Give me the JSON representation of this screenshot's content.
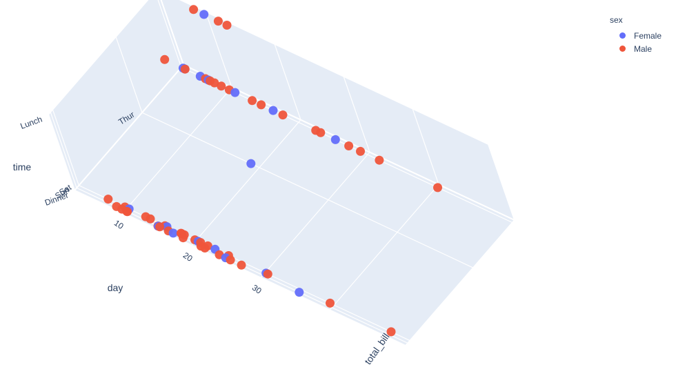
{
  "chart_data": {
    "type": "scatter3d",
    "axes": {
      "x": {
        "title": "total_bill",
        "tick_labels": [
          "10",
          "20",
          "30"
        ]
      },
      "y": {
        "title": "day",
        "tick_labels": [
          "Sun",
          "Sat",
          "Thur"
        ]
      },
      "z": {
        "title": "time",
        "tick_labels": [
          "Dinner",
          "Lunch"
        ]
      }
    },
    "legend": {
      "title": "sex",
      "placement": "top-right",
      "items": [
        {
          "name": "Female",
          "color": "#636efa"
        },
        {
          "name": "Male",
          "color": "#ef553b"
        }
      ]
    },
    "series": [
      {
        "name": "Female",
        "color": "#636efa",
        "points": [
          {
            "total_bill": 16.99,
            "day": "Sun",
            "time": "Dinner"
          },
          {
            "total_bill": 24.59,
            "day": "Sun",
            "time": "Dinner"
          },
          {
            "total_bill": 14.83,
            "day": "Sun",
            "time": "Dinner"
          },
          {
            "total_bill": 35.26,
            "day": "Sun",
            "time": "Dinner"
          },
          {
            "total_bill": 10.29,
            "day": "Sat",
            "time": "Dinner"
          },
          {
            "total_bill": 22.75,
            "day": "Sat",
            "time": "Dinner"
          },
          {
            "total_bill": 20.29,
            "day": "Sat",
            "time": "Dinner"
          },
          {
            "total_bill": 15.77,
            "day": "Sat",
            "time": "Dinner"
          },
          {
            "total_bill": 30.14,
            "day": "Sat",
            "time": "Dinner"
          },
          {
            "total_bill": 12.74,
            "day": "Thur",
            "time": "Lunch"
          },
          {
            "total_bill": 13.0,
            "day": "Thur",
            "time": "Lunch"
          },
          {
            "total_bill": 16.4,
            "day": "Thur",
            "time": "Lunch"
          },
          {
            "total_bill": 20.27,
            "day": "Thur",
            "time": "Lunch"
          },
          {
            "total_bill": 34.83,
            "day": "Thur",
            "time": "Lunch"
          },
          {
            "total_bill": 18.78,
            "day": "Thur",
            "time": "Dinner"
          },
          {
            "total_bill": 5.75,
            "day": "Fri",
            "time": "Dinner"
          },
          {
            "total_bill": 16.32,
            "day": "Fri",
            "time": "Dinner"
          },
          {
            "total_bill": 10.09,
            "day": "Fri",
            "time": "Lunch"
          }
        ]
      },
      {
        "name": "Male",
        "color": "#ef553b",
        "points": [
          {
            "total_bill": 10.34,
            "day": "Sun",
            "time": "Dinner"
          },
          {
            "total_bill": 21.01,
            "day": "Sun",
            "time": "Dinner"
          },
          {
            "total_bill": 23.68,
            "day": "Sun",
            "time": "Dinner"
          },
          {
            "total_bill": 25.29,
            "day": "Sun",
            "time": "Dinner"
          },
          {
            "total_bill": 8.77,
            "day": "Sun",
            "time": "Dinner"
          },
          {
            "total_bill": 26.88,
            "day": "Sun",
            "time": "Dinner"
          },
          {
            "total_bill": 15.04,
            "day": "Sun",
            "time": "Dinner"
          },
          {
            "total_bill": 14.78,
            "day": "Sun",
            "time": "Dinner"
          },
          {
            "total_bill": 10.27,
            "day": "Sun",
            "time": "Dinner"
          },
          {
            "total_bill": 18.43,
            "day": "Sun",
            "time": "Dinner"
          },
          {
            "total_bill": 21.58,
            "day": "Sun",
            "time": "Dinner"
          },
          {
            "total_bill": 16.29,
            "day": "Sun",
            "time": "Dinner"
          },
          {
            "total_bill": 9.55,
            "day": "Sun",
            "time": "Dinner"
          },
          {
            "total_bill": 20.65,
            "day": "Sat",
            "time": "Dinner"
          },
          {
            "total_bill": 17.92,
            "day": "Sat",
            "time": "Dinner"
          },
          {
            "total_bill": 39.42,
            "day": "Sat",
            "time": "Dinner"
          },
          {
            "total_bill": 19.82,
            "day": "Sat",
            "time": "Dinner"
          },
          {
            "total_bill": 17.81,
            "day": "Sat",
            "time": "Dinner"
          },
          {
            "total_bill": 13.37,
            "day": "Sat",
            "time": "Dinner"
          },
          {
            "total_bill": 12.69,
            "day": "Sat",
            "time": "Dinner"
          },
          {
            "total_bill": 21.7,
            "day": "Sat",
            "time": "Dinner"
          },
          {
            "total_bill": 9.68,
            "day": "Sat",
            "time": "Dinner"
          },
          {
            "total_bill": 30.4,
            "day": "Sat",
            "time": "Dinner"
          },
          {
            "total_bill": 18.29,
            "day": "Sat",
            "time": "Dinner"
          },
          {
            "total_bill": 24.71,
            "day": "Sat",
            "time": "Dinner"
          },
          {
            "total_bill": 48.27,
            "day": "Sat",
            "time": "Dinner"
          },
          {
            "total_bill": 15.48,
            "day": "Sat",
            "time": "Dinner"
          },
          {
            "total_bill": 7.25,
            "day": "Sat",
            "time": "Dinner"
          },
          {
            "total_bill": 27.2,
            "day": "Thur",
            "time": "Lunch"
          },
          {
            "total_bill": 22.76,
            "day": "Thur",
            "time": "Lunch"
          },
          {
            "total_bill": 17.29,
            "day": "Thur",
            "time": "Lunch"
          },
          {
            "total_bill": 19.44,
            "day": "Thur",
            "time": "Lunch"
          },
          {
            "total_bill": 16.66,
            "day": "Thur",
            "time": "Lunch"
          },
          {
            "total_bill": 10.07,
            "day": "Thur",
            "time": "Lunch"
          },
          {
            "total_bill": 32.68,
            "day": "Thur",
            "time": "Lunch"
          },
          {
            "total_bill": 15.98,
            "day": "Thur",
            "time": "Lunch"
          },
          {
            "total_bill": 13.03,
            "day": "Thur",
            "time": "Lunch"
          },
          {
            "total_bill": 18.28,
            "day": "Thur",
            "time": "Lunch"
          },
          {
            "total_bill": 24.06,
            "day": "Thur",
            "time": "Lunch"
          },
          {
            "total_bill": 41.19,
            "day": "Thur",
            "time": "Lunch"
          },
          {
            "total_bill": 28.97,
            "day": "Fri",
            "time": "Dinner"
          },
          {
            "total_bill": 22.49,
            "day": "Fri",
            "time": "Dinner"
          },
          {
            "total_bill": 40.17,
            "day": "Fri",
            "time": "Dinner"
          },
          {
            "total_bill": 27.28,
            "day": "Fri",
            "time": "Dinner"
          },
          {
            "total_bill": 12.16,
            "day": "Fri",
            "time": "Lunch"
          },
          {
            "total_bill": 8.58,
            "day": "Fri",
            "time": "Lunch"
          },
          {
            "total_bill": 13.42,
            "day": "Fri",
            "time": "Lunch"
          }
        ]
      }
    ]
  }
}
